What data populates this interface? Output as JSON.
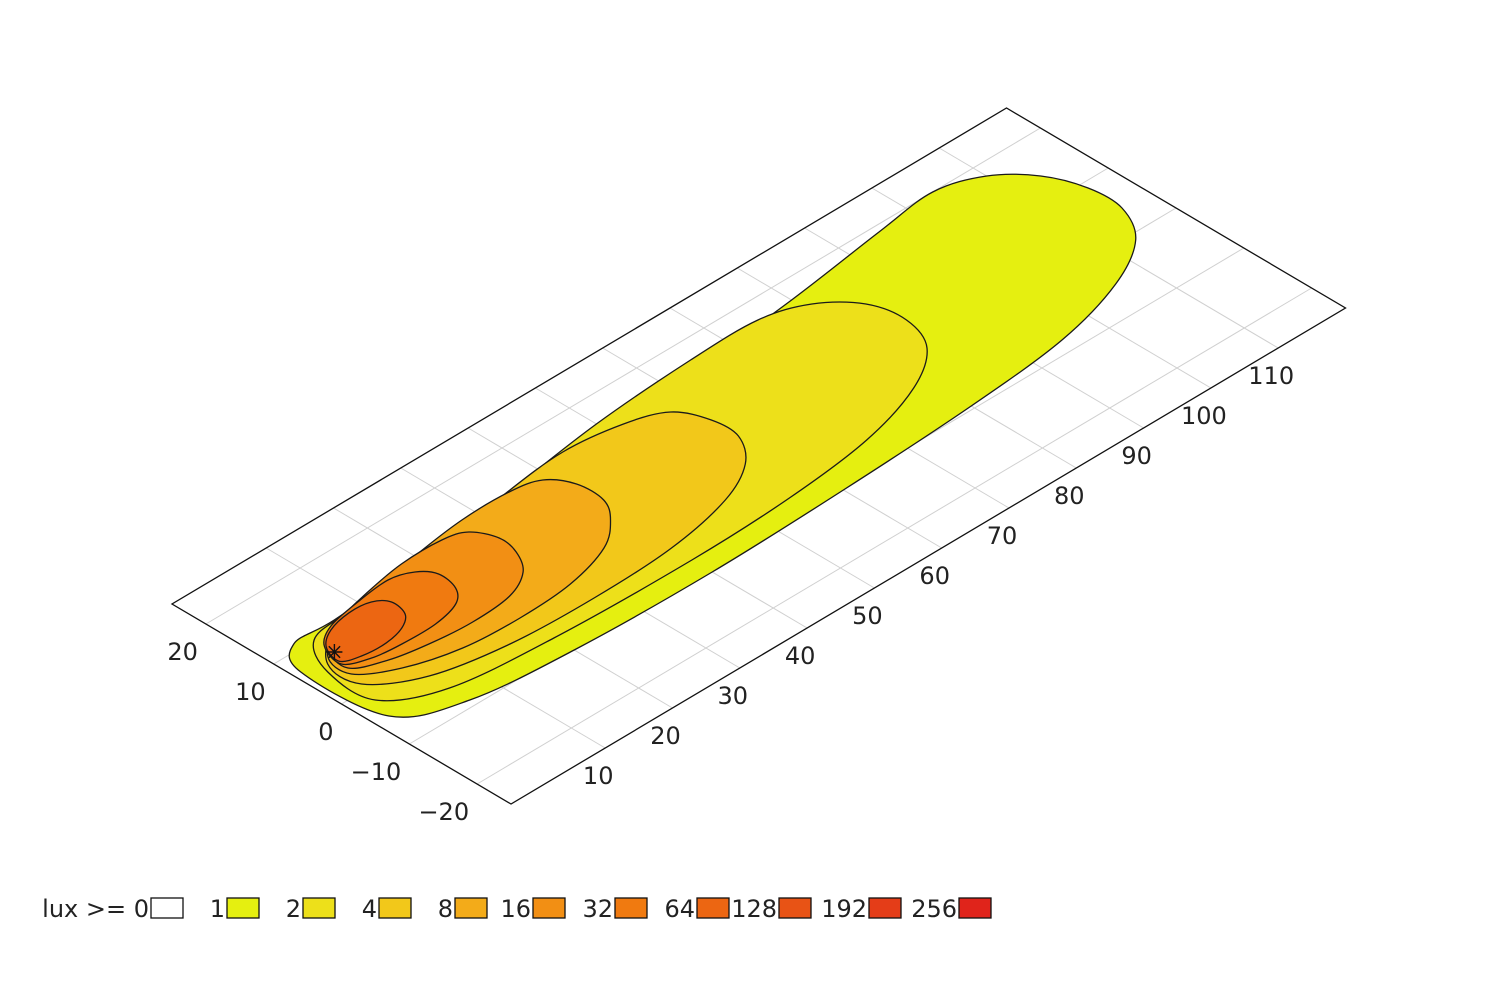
{
  "chart_data": {
    "type": "heatmap",
    "subtype": "isolux-contour-plot",
    "x_ticks": [
      -20,
      -10,
      0,
      10,
      20
    ],
    "y_ticks": [
      10,
      20,
      30,
      40,
      50,
      60,
      70,
      80,
      90,
      100,
      110
    ],
    "xlim": [
      -25,
      25
    ],
    "ylim": [
      -4,
      120
    ],
    "grid": true,
    "legend_placement": "bottom",
    "legend_label": "lux >= 0",
    "legend": [
      {
        "label": "lux >= 0",
        "threshold": 0,
        "color": "#ffffff"
      },
      {
        "label": "1",
        "threshold": 1,
        "color": "#e5ef10"
      },
      {
        "label": "2",
        "threshold": 2,
        "color": "#ede01a"
      },
      {
        "label": "4",
        "threshold": 4,
        "color": "#f2c81a"
      },
      {
        "label": "8",
        "threshold": 8,
        "color": "#f3ab19"
      },
      {
        "label": "16",
        "threshold": 16,
        "color": "#f28f14"
      },
      {
        "label": "32",
        "threshold": 32,
        "color": "#f07a10"
      },
      {
        "label": "64",
        "threshold": 64,
        "color": "#ec6612"
      },
      {
        "label": "128",
        "threshold": 128,
        "color": "#e85315"
      },
      {
        "label": "192",
        "threshold": 192,
        "color": "#e43d18"
      },
      {
        "label": "256",
        "threshold": 256,
        "color": "#e0241b"
      }
    ],
    "luminaire_position": {
      "x": 7,
      "y": 2
    },
    "contours": [
      {
        "level": 1,
        "color": "#e5ef10",
        "outline": [
          [
            -5,
            -2
          ],
          [
            -9,
            6
          ],
          [
            -10.5,
            20
          ],
          [
            -11,
            40
          ],
          [
            -10.5,
            60
          ],
          [
            -9.5,
            80
          ],
          [
            -8,
            95
          ],
          [
            -5,
            106
          ],
          [
            -1,
            113
          ],
          [
            4,
            116
          ],
          [
            9,
            116
          ],
          [
            14,
            114
          ],
          [
            18,
            110
          ],
          [
            20,
            104
          ],
          [
            19,
            95
          ],
          [
            17,
            80
          ],
          [
            15,
            60
          ],
          [
            13,
            40
          ],
          [
            12,
            20
          ],
          [
            11,
            6
          ],
          [
            11,
            0
          ],
          [
            7,
            -3
          ]
        ]
      },
      {
        "level": 2,
        "color": "#ede01a",
        "outline": [
          [
            -2,
            -1
          ],
          [
            -6,
            6
          ],
          [
            -7.5,
            20
          ],
          [
            -8,
            40
          ],
          [
            -7.5,
            55
          ],
          [
            -6,
            68
          ],
          [
            -3,
            78
          ],
          [
            1,
            84
          ],
          [
            6,
            86
          ],
          [
            11,
            85
          ],
          [
            15,
            81
          ],
          [
            17,
            75
          ],
          [
            17,
            65
          ],
          [
            16,
            50
          ],
          [
            14,
            35
          ],
          [
            12,
            20
          ],
          [
            11,
            8
          ],
          [
            10,
            2
          ],
          [
            5,
            -1
          ]
        ]
      },
      {
        "level": 4,
        "color": "#f2c81a",
        "outline": [
          [
            1,
            0
          ],
          [
            -3,
            6
          ],
          [
            -5,
            16
          ],
          [
            -5.5,
            28
          ],
          [
            -5,
            40
          ],
          [
            -3,
            50
          ],
          [
            0,
            56
          ],
          [
            4,
            59
          ],
          [
            8,
            59
          ],
          [
            12,
            57
          ],
          [
            14,
            52
          ],
          [
            15,
            44
          ],
          [
            14,
            34
          ],
          [
            12,
            22
          ],
          [
            11,
            12
          ],
          [
            10,
            5
          ],
          [
            6,
            0
          ]
        ]
      },
      {
        "level": 8,
        "color": "#f3ab19",
        "outline": [
          [
            3,
            0.5
          ],
          [
            0,
            5
          ],
          [
            -2,
            12
          ],
          [
            -2.5,
            20
          ],
          [
            -2,
            28
          ],
          [
            0,
            35
          ],
          [
            3,
            39
          ],
          [
            6,
            41
          ],
          [
            10,
            41
          ],
          [
            13,
            39
          ],
          [
            14,
            35
          ],
          [
            14,
            28
          ],
          [
            13,
            20
          ],
          [
            11.5,
            12
          ],
          [
            10,
            6
          ],
          [
            7,
            1
          ]
        ]
      },
      {
        "level": 16,
        "color": "#f28f14",
        "outline": [
          [
            4,
            1
          ],
          [
            2,
            5
          ],
          [
            1,
            10
          ],
          [
            0.5,
            16
          ],
          [
            1,
            22
          ],
          [
            3,
            26
          ],
          [
            6,
            28
          ],
          [
            9,
            28.5
          ],
          [
            12,
            27
          ],
          [
            13,
            24
          ],
          [
            13,
            18
          ],
          [
            12,
            12
          ],
          [
            10.5,
            6
          ],
          [
            8,
            2
          ]
        ]
      },
      {
        "level": 32,
        "color": "#f07a10",
        "outline": [
          [
            5,
            1
          ],
          [
            3.5,
            4
          ],
          [
            3,
            8
          ],
          [
            3,
            13
          ],
          [
            4,
            17
          ],
          [
            6,
            19
          ],
          [
            9,
            19.5
          ],
          [
            11,
            18
          ],
          [
            12,
            15
          ],
          [
            11.5,
            10
          ],
          [
            10.5,
            5
          ],
          [
            8.5,
            2
          ]
        ]
      },
      {
        "level": 64,
        "color": "#ec6612",
        "outline": [
          [
            5.5,
            1.2
          ],
          [
            4.5,
            3.5
          ],
          [
            4.3,
            7
          ],
          [
            5,
            10
          ],
          [
            6.5,
            12
          ],
          [
            9,
            12.5
          ],
          [
            10.5,
            11
          ],
          [
            10.8,
            8
          ],
          [
            10,
            4.5
          ],
          [
            8.2,
            2
          ]
        ]
      }
    ]
  }
}
